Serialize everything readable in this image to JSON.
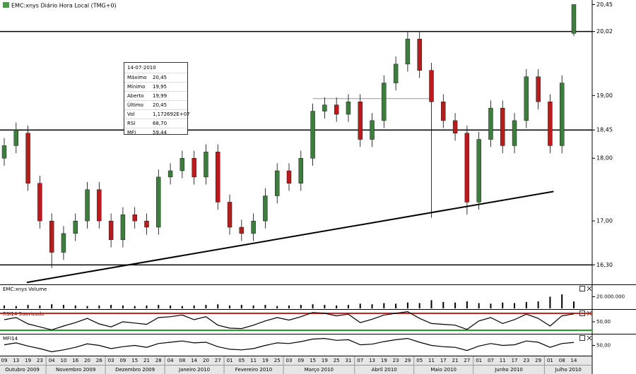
{
  "chart_data": [
    {
      "type": "candlestick",
      "title": "EMC:xnys Diário Hora Local (TMG+0)",
      "categories": [
        "09",
        "13",
        "19",
        "23",
        "04",
        "10",
        "16",
        "20",
        "26",
        "03",
        "09",
        "15",
        "21",
        "28",
        "04",
        "08",
        "14",
        "20",
        "27",
        "01",
        "05",
        "11",
        "19",
        "25",
        "03",
        "09",
        "15",
        "19",
        "25",
        "31",
        "07",
        "13",
        "19",
        "23",
        "29",
        "05",
        "11",
        "17",
        "21",
        "27",
        "01",
        "07",
        "11",
        "17",
        "23",
        "29",
        "01",
        "08",
        "14"
      ],
      "months": [
        "Outubro 2009",
        null,
        null,
        null,
        "Novembro 2009",
        null,
        null,
        null,
        null,
        "Dezembro 2009",
        null,
        null,
        null,
        null,
        "Janeiro 2010",
        null,
        null,
        null,
        null,
        "Fevereiro 2010",
        null,
        null,
        null,
        null,
        "Março 2010",
        null,
        null,
        null,
        null,
        null,
        "Abril 2010",
        null,
        null,
        null,
        null,
        "Maio 2010",
        null,
        null,
        null,
        null,
        "Junho 2010",
        null,
        null,
        null,
        null,
        null,
        "Julho 2010",
        null,
        null
      ],
      "open": [
        18.0,
        18.2,
        18.4,
        17.6,
        17.0,
        16.5,
        16.8,
        17.0,
        17.5,
        17.0,
        16.7,
        17.1,
        17.0,
        16.9,
        17.7,
        17.8,
        18.0,
        17.7,
        18.1,
        17.3,
        16.9,
        16.8,
        17.0,
        17.4,
        17.8,
        17.6,
        18.0,
        18.75,
        18.85,
        18.7,
        18.9,
        18.3,
        18.6,
        19.2,
        19.5,
        19.9,
        19.4,
        18.9,
        18.6,
        18.4,
        17.3,
        18.3,
        18.8,
        18.2,
        18.6,
        19.3,
        18.9,
        18.2,
        19.99
      ],
      "high": [
        18.32,
        18.57,
        18.52,
        17.72,
        17.12,
        16.92,
        17.12,
        17.62,
        17.62,
        17.12,
        17.22,
        17.22,
        17.12,
        17.82,
        17.92,
        18.12,
        18.12,
        18.22,
        18.22,
        17.42,
        17.02,
        17.12,
        17.52,
        17.92,
        17.92,
        18.12,
        18.87,
        18.97,
        18.97,
        19.02,
        19.02,
        18.72,
        19.32,
        19.62,
        20.02,
        20.02,
        19.52,
        19.02,
        18.72,
        18.52,
        18.42,
        18.92,
        18.92,
        18.72,
        19.42,
        19.42,
        19.02,
        19.32,
        20.45
      ],
      "low": [
        17.88,
        18.08,
        17.48,
        16.88,
        16.25,
        16.38,
        16.68,
        16.88,
        16.88,
        16.58,
        16.58,
        16.88,
        16.78,
        16.78,
        17.58,
        17.68,
        17.58,
        17.58,
        17.18,
        16.78,
        16.68,
        16.68,
        16.88,
        17.28,
        17.48,
        17.48,
        17.88,
        18.63,
        18.58,
        18.58,
        18.18,
        18.18,
        18.48,
        19.08,
        19.38,
        19.28,
        17.05,
        18.48,
        18.28,
        17.1,
        17.18,
        18.18,
        18.08,
        18.08,
        18.48,
        18.78,
        18.08,
        18.08,
        19.95
      ],
      "close": [
        18.2,
        18.45,
        17.6,
        17.0,
        16.5,
        16.8,
        17.0,
        17.5,
        17.0,
        16.7,
        17.1,
        17.0,
        16.9,
        17.7,
        17.8,
        18.0,
        17.7,
        18.1,
        17.3,
        16.9,
        16.8,
        17.0,
        17.4,
        17.8,
        17.6,
        18.0,
        18.75,
        18.85,
        18.7,
        18.9,
        18.3,
        18.6,
        19.2,
        19.5,
        19.9,
        19.4,
        18.9,
        18.6,
        18.4,
        17.3,
        18.3,
        18.8,
        18.2,
        18.6,
        19.3,
        18.9,
        18.2,
        19.2,
        20.45
      ],
      "up_color": "#3d7d3d",
      "down_color": "#b81c1c",
      "ylim": [
        16.0,
        20.5
      ],
      "yticks": [
        {
          "value": 20.45,
          "label": "20,45"
        },
        {
          "value": 20.02,
          "label": "20,02"
        },
        {
          "value": 19,
          "label": "19,00"
        },
        {
          "value": 18.45,
          "label": "18,45"
        },
        {
          "value": 18,
          "label": "18,00"
        },
        {
          "value": 17,
          "label": "17,00"
        },
        {
          "value": 16.3,
          "label": "16,30"
        }
      ],
      "hlines": [
        20.02,
        18.45,
        16.3
      ],
      "trendline": {
        "from": [
          1.9,
          16.02
        ],
        "to": [
          46.3,
          17.47
        ]
      },
      "gray_line": {
        "from": [
          26,
          18.95
        ],
        "to": [
          36,
          18.95
        ]
      },
      "info_box": {
        "date": "14-07-2010",
        "rows": [
          [
            "Máximo",
            "20,45"
          ],
          [
            "Mínimo",
            "19,95"
          ],
          [
            "Aberto",
            "19,99"
          ],
          [
            "Último",
            "20,45"
          ],
          [
            "Vol",
            "1,172692E+07"
          ],
          [
            "RSI",
            "68,70"
          ],
          [
            "MFI",
            "59,44"
          ]
        ]
      }
    },
    {
      "type": "bar",
      "title": "EMC:xnys Volume",
      "color": "#000000",
      "values": [
        5000000,
        4000000,
        6000000,
        5000000,
        7000000,
        6000000,
        5000000,
        4000000,
        5000000,
        6000000,
        5000000,
        4000000,
        5000000,
        6000000,
        5000000,
        4000000,
        5000000,
        6000000,
        7000000,
        5000000,
        6000000,
        5000000,
        6000000,
        4000000,
        5000000,
        6000000,
        7000000,
        6000000,
        5000000,
        6000000,
        8000000,
        7000000,
        9000000,
        8000000,
        10000000,
        9000000,
        14000000,
        11000000,
        10000000,
        12000000,
        9000000,
        8000000,
        10000000,
        9000000,
        11000000,
        12000000,
        20000000,
        24000000,
        11726920
      ],
      "ylim": [
        0,
        35000000
      ],
      "yticks": [
        {
          "value": 20000000,
          "label": "20.000.000"
        }
      ]
    },
    {
      "type": "line",
      "title": "RSI14 Suavizado",
      "color": "#000000",
      "values": [
        55,
        60,
        45,
        38,
        31,
        40,
        48,
        58,
        45,
        38,
        50,
        47,
        44,
        60,
        62,
        66,
        55,
        62,
        42,
        35,
        34,
        42,
        52,
        60,
        54,
        62,
        72,
        70,
        64,
        68,
        48,
        56,
        66,
        70,
        74,
        58,
        46,
        44,
        42,
        32,
        52,
        60,
        46,
        55,
        68,
        58,
        40,
        64,
        68.7
      ],
      "ylim": [
        25,
        75
      ],
      "yticks": [
        {
          "value": 50,
          "label": "50,00"
        }
      ],
      "levels": [
        70,
        30
      ],
      "level_colors": [
        "#d02020",
        "#20a020"
      ]
    },
    {
      "type": "line",
      "title": "MFI14",
      "color": "#000000",
      "values": [
        52,
        58,
        48,
        40,
        30,
        36,
        44,
        55,
        50,
        40,
        46,
        50,
        44,
        56,
        60,
        64,
        58,
        60,
        46,
        38,
        36,
        40,
        50,
        58,
        56,
        62,
        70,
        72,
        66,
        68,
        52,
        54,
        62,
        68,
        72,
        60,
        50,
        46,
        44,
        34,
        48,
        56,
        50,
        52,
        64,
        60,
        44,
        56,
        59.44
      ],
      "ylim": [
        20,
        80
      ],
      "yticks": [
        {
          "value": 50,
          "label": "50,00"
        }
      ]
    }
  ]
}
